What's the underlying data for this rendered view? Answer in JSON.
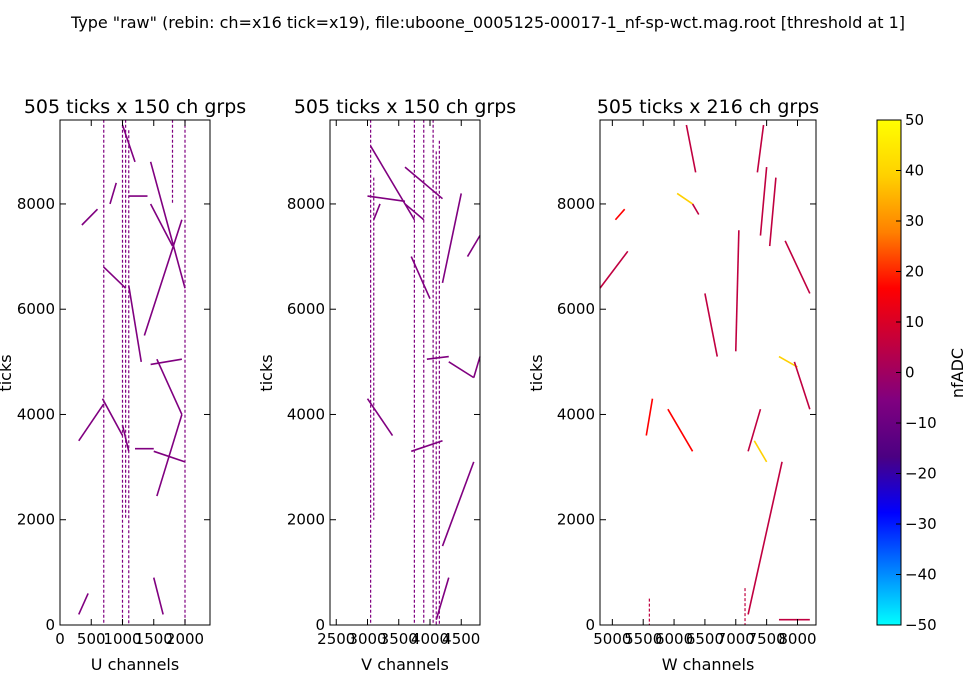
{
  "figure_title": "Type \"raw\" (rebin: ch=x16 tick=x19), file:uboone_0005125-00017-1_nf-sp-wct.mag.root [threshold at 1]",
  "colors": {
    "track_low": "#4b0082",
    "track_high": "#ff2a00",
    "track_hot": "#ffd200",
    "frame": "#000000"
  },
  "chart_data": [
    {
      "type": "heatmap",
      "title": "505 ticks x 150 ch grps",
      "xlabel": "U channels",
      "ylabel": "ticks",
      "xlim": [
        0,
        2400
      ],
      "ylim": [
        0,
        9595
      ],
      "xticks": [
        0,
        500,
        1000,
        1500,
        2000
      ],
      "xtick_labels": [
        "0",
        "500",
        "1000",
        "1500",
        "2000"
      ],
      "yticks": [
        0,
        2000,
        4000,
        6000,
        8000
      ],
      "ytick_labels": [
        "0",
        "2000",
        "4000",
        "6000",
        "8000"
      ],
      "tracks": [
        {
          "x": [
            1450,
            2000
          ],
          "y": [
            8800,
            6400
          ],
          "v": -5
        },
        {
          "x": [
            1450,
            1800
          ],
          "y": [
            8000,
            7200
          ],
          "v": -5
        },
        {
          "x": [
            1100,
            1400
          ],
          "y": [
            8150,
            8150
          ],
          "v": -5
        },
        {
          "x": [
            1350,
            1950
          ],
          "y": [
            5500,
            7700
          ],
          "v": -5
        },
        {
          "x": [
            1100,
            1300
          ],
          "y": [
            6450,
            5000
          ],
          "v": -5
        },
        {
          "x": [
            1450,
            1950
          ],
          "y": [
            4950,
            5050
          ],
          "v": -5
        },
        {
          "x": [
            1550,
            1950
          ],
          "y": [
            5050,
            4000
          ],
          "v": -5
        },
        {
          "x": [
            1550,
            1950
          ],
          "y": [
            2450,
            4000
          ],
          "v": -5
        },
        {
          "x": [
            1200,
            1500
          ],
          "y": [
            3350,
            3350
          ],
          "v": -5
        },
        {
          "x": [
            1500,
            2000
          ],
          "y": [
            3300,
            3100
          ],
          "v": -5
        },
        {
          "x": [
            1000,
            1100
          ],
          "y": [
            3800,
            3300
          ],
          "v": -5
        },
        {
          "x": [
            680,
            1000
          ],
          "y": [
            4300,
            3600
          ],
          "v": -5
        },
        {
          "x": [
            300,
            700
          ],
          "y": [
            3500,
            4200
          ],
          "v": -5
        },
        {
          "x": [
            700,
            1050
          ],
          "y": [
            6800,
            6400
          ],
          "v": -5
        },
        {
          "x": [
            350,
            600
          ],
          "y": [
            7600,
            7900
          ],
          "v": -5
        },
        {
          "x": [
            1500,
            1650
          ],
          "y": [
            900,
            200
          ],
          "v": -5
        },
        {
          "x": [
            300,
            450
          ],
          "y": [
            200,
            600
          ],
          "v": -5
        },
        {
          "x": [
            1000,
            1200
          ],
          "y": [
            9500,
            8800
          ],
          "v": -5
        },
        {
          "x": [
            800,
            900
          ],
          "y": [
            8000,
            8400
          ],
          "v": -5
        }
      ],
      "columns": [
        {
          "x": 700,
          "y": [
            0,
            9600
          ],
          "v": -5
        },
        {
          "x": 1000,
          "y": [
            0,
            9600
          ],
          "v": -5
        },
        {
          "x": 1050,
          "y": [
            2000,
            9600
          ],
          "v": -5
        },
        {
          "x": 1100,
          "y": [
            0,
            9400
          ],
          "v": -5
        },
        {
          "x": 2000,
          "y": [
            0,
            9600
          ],
          "v": -5
        },
        {
          "x": 1800,
          "y": [
            8000,
            9600
          ],
          "v": -5
        }
      ]
    },
    {
      "type": "heatmap",
      "title": "505 ticks x 150 ch grps",
      "xlabel": "V channels",
      "ylabel": "ticks",
      "xlim": [
        2400,
        4800
      ],
      "ylim": [
        0,
        9595
      ],
      "xticks": [
        2500,
        3000,
        3500,
        4000,
        4500
      ],
      "xtick_labels": [
        "2500",
        "3000",
        "3500",
        "4000",
        "4500"
      ],
      "yticks": [
        0,
        2000,
        4000,
        6000,
        8000
      ],
      "ytick_labels": [
        "0",
        "2000",
        "4000",
        "6000",
        "8000"
      ],
      "tracks": [
        {
          "x": [
            3050,
            3750
          ],
          "y": [
            9100,
            7700
          ],
          "v": -5
        },
        {
          "x": [
            3000,
            3600
          ],
          "y": [
            8150,
            8050
          ],
          "v": -5
        },
        {
          "x": [
            3600,
            3900
          ],
          "y": [
            8000,
            7700
          ],
          "v": -5
        },
        {
          "x": [
            3600,
            4200
          ],
          "y": [
            8700,
            8100
          ],
          "v": -5
        },
        {
          "x": [
            3700,
            4000
          ],
          "y": [
            7000,
            6200
          ],
          "v": -5
        },
        {
          "x": [
            4200,
            4500
          ],
          "y": [
            6500,
            8200
          ],
          "v": -5
        },
        {
          "x": [
            3950,
            4300
          ],
          "y": [
            5050,
            5100
          ],
          "v": -5
        },
        {
          "x": [
            4300,
            4700
          ],
          "y": [
            5000,
            4700
          ],
          "v": -5
        },
        {
          "x": [
            4700,
            4800
          ],
          "y": [
            4700,
            5100
          ],
          "v": -5
        },
        {
          "x": [
            3000,
            3400
          ],
          "y": [
            4300,
            3600
          ],
          "v": -5
        },
        {
          "x": [
            3700,
            4200
          ],
          "y": [
            3300,
            3500
          ],
          "v": -5
        },
        {
          "x": [
            4200,
            4700
          ],
          "y": [
            1500,
            3100
          ],
          "v": -5
        },
        {
          "x": [
            4100,
            4300
          ],
          "y": [
            100,
            900
          ],
          "v": -5
        },
        {
          "x": [
            4600,
            4800
          ],
          "y": [
            7000,
            7400
          ],
          "v": -5
        },
        {
          "x": [
            3100,
            3200
          ],
          "y": [
            7700,
            8000
          ],
          "v": -5
        }
      ],
      "columns": [
        {
          "x": 3050,
          "y": [
            0,
            9600
          ],
          "v": -5
        },
        {
          "x": 3100,
          "y": [
            2000,
            8500
          ],
          "v": -5
        },
        {
          "x": 3750,
          "y": [
            0,
            9600
          ],
          "v": -5
        },
        {
          "x": 3900,
          "y": [
            0,
            9600
          ],
          "v": -5
        },
        {
          "x": 4050,
          "y": [
            0,
            9600
          ],
          "v": -5
        },
        {
          "x": 4100,
          "y": [
            0,
            9000
          ],
          "v": -5
        },
        {
          "x": 4150,
          "y": [
            0,
            9200
          ],
          "v": -5
        }
      ]
    },
    {
      "type": "heatmap",
      "title": "505 ticks x 216 ch grps",
      "xlabel": "W channels",
      "ylabel": "ticks",
      "xlim": [
        4800,
        8300
      ],
      "ylim": [
        0,
        9595
      ],
      "xticks": [
        5000,
        5500,
        6000,
        6500,
        7000,
        7500,
        8000
      ],
      "xtick_labels": [
        "5000",
        "5500",
        "6000",
        "6500",
        "7000",
        "7500",
        "8000"
      ],
      "yticks": [
        0,
        2000,
        4000,
        6000,
        8000
      ],
      "ytick_labels": [
        "0",
        "2000",
        "4000",
        "6000",
        "8000"
      ],
      "tracks": [
        {
          "x": [
            4800,
            5250
          ],
          "y": [
            6400,
            7100
          ],
          "v": 5
        },
        {
          "x": [
            5050,
            5200
          ],
          "y": [
            7700,
            7900
          ],
          "v": 12
        },
        {
          "x": [
            6050,
            6300
          ],
          "y": [
            8200,
            8000
          ],
          "v": 40
        },
        {
          "x": [
            6300,
            6400
          ],
          "y": [
            8000,
            7800
          ],
          "v": 10
        },
        {
          "x": [
            6200,
            6350
          ],
          "y": [
            9500,
            8600
          ],
          "v": 5
        },
        {
          "x": [
            6500,
            6700
          ],
          "y": [
            6300,
            5100
          ],
          "v": 5
        },
        {
          "x": [
            7000,
            7050
          ],
          "y": [
            5200,
            7500
          ],
          "v": 5
        },
        {
          "x": [
            7350,
            7450
          ],
          "y": [
            8600,
            9500
          ],
          "v": 5
        },
        {
          "x": [
            7400,
            7500
          ],
          "y": [
            7400,
            8700
          ],
          "v": 5
        },
        {
          "x": [
            7550,
            7650
          ],
          "y": [
            7200,
            8500
          ],
          "v": 5
        },
        {
          "x": [
            7800,
            8200
          ],
          "y": [
            7300,
            6300
          ],
          "v": 5
        },
        {
          "x": [
            7700,
            8000
          ],
          "y": [
            5100,
            4900
          ],
          "v": 35
        },
        {
          "x": [
            7950,
            8200
          ],
          "y": [
            5000,
            4100
          ],
          "v": 8
        },
        {
          "x": [
            7300,
            7500
          ],
          "y": [
            3500,
            3100
          ],
          "v": 40
        },
        {
          "x": [
            7200,
            7400
          ],
          "y": [
            3300,
            4100
          ],
          "v": 8
        },
        {
          "x": [
            5550,
            5650
          ],
          "y": [
            3600,
            4300
          ],
          "v": 15
        },
        {
          "x": [
            5900,
            6300
          ],
          "y": [
            4100,
            3300
          ],
          "v": 15
        },
        {
          "x": [
            7200,
            7750
          ],
          "y": [
            200,
            3100
          ],
          "v": 5
        },
        {
          "x": [
            7700,
            8200
          ],
          "y": [
            100,
            100
          ],
          "v": 3
        },
        {
          "x": 5600,
          "y": [
            0,
            400
          ],
          "v": 3,
          "kind": "col"
        }
      ],
      "columns": [
        {
          "x": 5600,
          "y": [
            0,
            500
          ],
          "v": 5
        },
        {
          "x": 7150,
          "y": [
            0,
            700
          ],
          "v": 5
        }
      ]
    }
  ],
  "colorbar": {
    "label": "nfADC",
    "ticks": [
      50,
      40,
      30,
      20,
      10,
      0,
      -10,
      -20,
      -30,
      -40,
      -50
    ],
    "tick_labels": [
      "50",
      "40",
      "30",
      "20",
      "10",
      "0",
      "−10",
      "−20",
      "−30",
      "−40",
      "−50"
    ],
    "range": [
      -50,
      50
    ],
    "stops": [
      "#00ffff",
      "#0080ff",
      "#0000ff",
      "#4b0082",
      "#800080",
      "#c00040",
      "#ff0000",
      "#ff8000",
      "#ffd000",
      "#ffff00"
    ]
  }
}
